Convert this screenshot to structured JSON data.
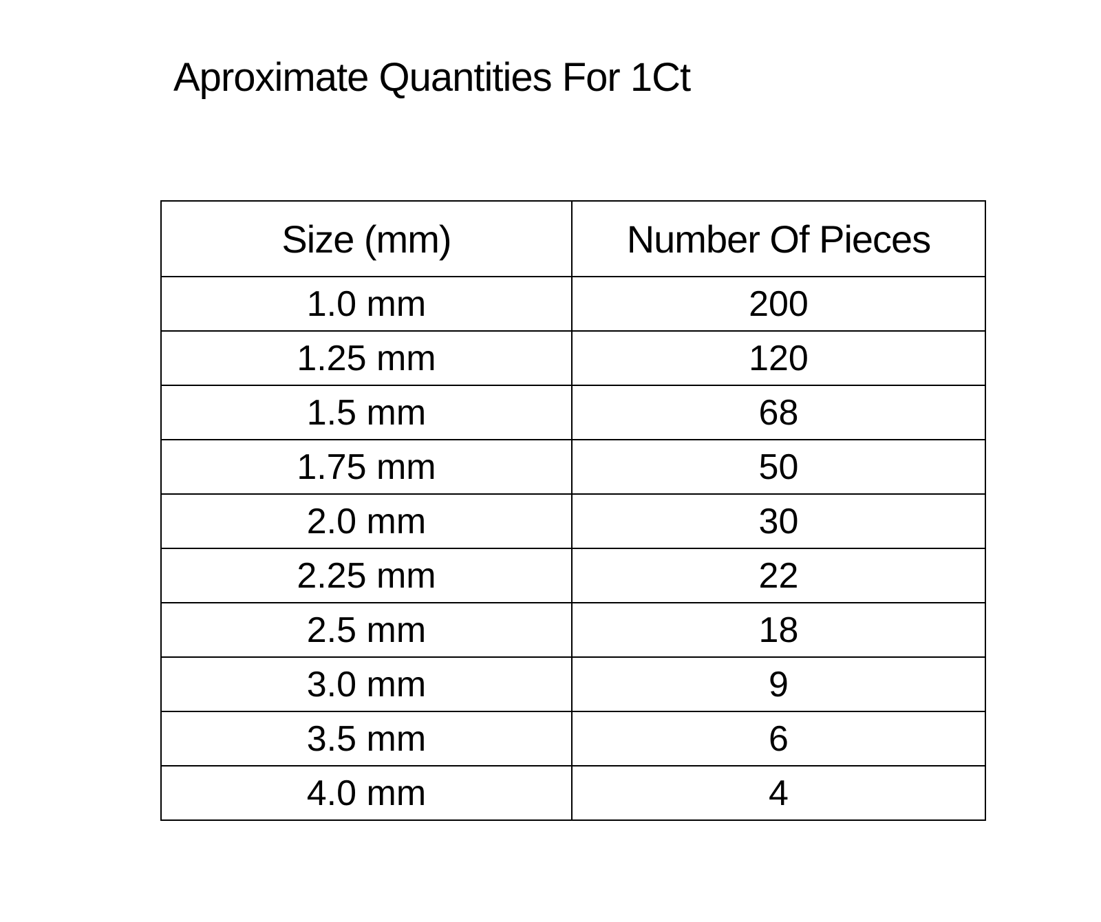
{
  "title": "Aproximate Quantities For 1Ct",
  "table": {
    "headers": [
      "Size (mm)",
      "Number Of Pieces"
    ],
    "rows": [
      [
        "1.0 mm",
        "200"
      ],
      [
        "1.25 mm",
        "120"
      ],
      [
        "1.5 mm",
        "68"
      ],
      [
        "1.75 mm",
        "50"
      ],
      [
        "2.0 mm",
        "30"
      ],
      [
        "2.25 mm",
        "22"
      ],
      [
        "2.5 mm",
        "18"
      ],
      [
        "3.0 mm",
        "9"
      ],
      [
        "3.5 mm",
        "6"
      ],
      [
        "4.0 mm",
        "4"
      ]
    ]
  }
}
